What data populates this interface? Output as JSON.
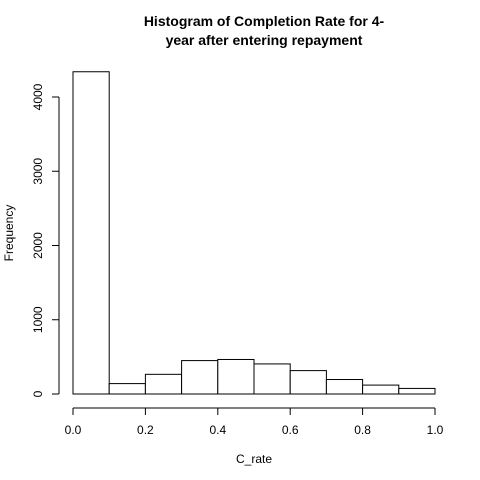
{
  "chart_data": {
    "type": "bar",
    "title_line1": "Histogram of Completion Rate for 4-",
    "title_line2": "year after entering repayment",
    "xlabel": "C_rate",
    "ylabel": "Frequency",
    "bin_edges": [
      0.0,
      0.1,
      0.2,
      0.3,
      0.4,
      0.5,
      0.6,
      0.7,
      0.8,
      0.9,
      1.0
    ],
    "values": [
      4340,
      140,
      265,
      450,
      465,
      405,
      315,
      195,
      120,
      75
    ],
    "x_ticks": [
      "0.0",
      "0.2",
      "0.4",
      "0.6",
      "0.8",
      "1.0"
    ],
    "y_ticks": [
      "0",
      "1000",
      "2000",
      "3000",
      "4000"
    ],
    "xlim": [
      0.0,
      1.0
    ],
    "ylim": [
      0,
      4000
    ],
    "grid": false,
    "bar_fill": "#ffffff",
    "bar_stroke": "#000000"
  }
}
